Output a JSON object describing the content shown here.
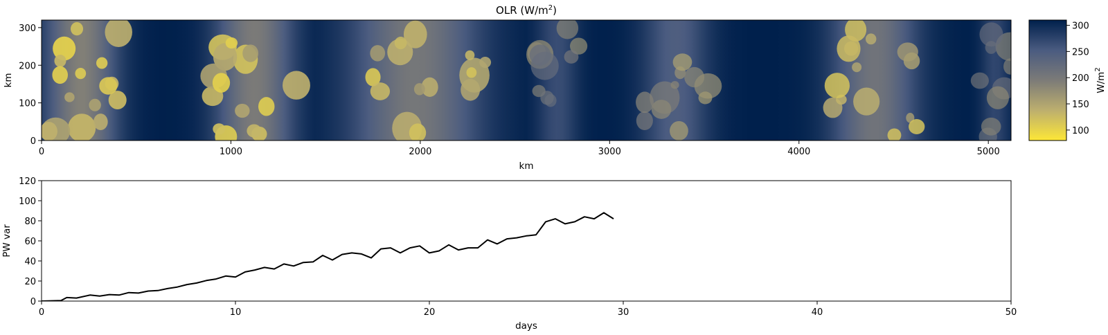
{
  "chart_data": [
    {
      "type": "heatmap",
      "title": "OLR (W/m",
      "title_sup": "2",
      "title_close": ")",
      "xlabel": "km",
      "ylabel": "km",
      "xlim": [
        0,
        5120
      ],
      "ylim": [
        0,
        320
      ],
      "x_ticks": [
        0,
        1000,
        2000,
        3000,
        4000,
        5000
      ],
      "y_ticks": [
        0,
        100,
        200,
        300
      ],
      "colormap": "cividis_r",
      "colorbar": {
        "label": "W/m",
        "label_sup": "2",
        "range": [
          80,
          310
        ],
        "ticks": [
          100,
          150,
          200,
          250,
          300
        ],
        "stops": [
          "#fde737",
          "#bdaf6e",
          "#7c7b78",
          "#4a5b80",
          "#00204c"
        ]
      },
      "convective_bands_km": [
        {
          "x": [
            0,
            420
          ],
          "strength": 0.95
        },
        {
          "x": [
            900,
            1350
          ],
          "strength": 0.9
        },
        {
          "x": [
            1600,
            2350
          ],
          "strength": 0.85
        },
        {
          "x": [
            2600,
            2850
          ],
          "strength": 0.35
        },
        {
          "x": [
            3150,
            3550
          ],
          "strength": 0.5
        },
        {
          "x": [
            4150,
            4650
          ],
          "strength": 0.8
        },
        {
          "x": [
            4950,
            5120
          ],
          "strength": 0.3
        }
      ]
    },
    {
      "type": "line",
      "xlabel": "days",
      "ylabel": "PW var",
      "xlim": [
        0,
        50
      ],
      "ylim": [
        0,
        120
      ],
      "x_ticks": [
        0,
        10,
        20,
        30,
        40,
        50
      ],
      "y_ticks": [
        0,
        20,
        40,
        60,
        80,
        100,
        120
      ],
      "series": [
        {
          "color": "#000000",
          "x": [
            0,
            0.5,
            1.0,
            1.3,
            1.8,
            2.5,
            3.0,
            3.5,
            4.0,
            4.5,
            5.0,
            5.5,
            6.0,
            6.5,
            7.0,
            7.5,
            8.0,
            8.5,
            9.0,
            9.5,
            10.0,
            10.5,
            11.0,
            11.5,
            12.0,
            12.5,
            13.0,
            13.5,
            14.0,
            14.5,
            15.0,
            15.5,
            16.0,
            16.5,
            17.0,
            17.5,
            18.0,
            18.5,
            19.0,
            19.5,
            20.0,
            20.5,
            21.0,
            21.5,
            22.0,
            22.5,
            23.0,
            23.5,
            24.0,
            24.5,
            25.0,
            25.5,
            26.0,
            26.5,
            27.0,
            27.5,
            28.0,
            28.5,
            29.0,
            29.5
          ],
          "y": [
            0,
            0.3,
            0.5,
            3.5,
            3.0,
            6.0,
            5.0,
            6.5,
            6.0,
            8.5,
            8.0,
            10.0,
            10.5,
            12.5,
            14.0,
            16.5,
            18.0,
            20.5,
            22.0,
            25.0,
            24.0,
            29.0,
            31.0,
            33.5,
            32.0,
            37.0,
            35.0,
            38.5,
            39.0,
            45.5,
            41.0,
            46.5,
            48.0,
            47.0,
            43.0,
            52.0,
            53.0,
            48.0,
            53.0,
            55.0,
            48.0,
            50.0,
            56.0,
            51.0,
            53.0,
            53.0,
            61.0,
            57.0,
            62.0,
            63.0,
            65.0,
            66.0,
            79.0,
            82.0,
            77.0,
            79.0,
            84.0,
            82.0,
            88.0,
            82.0
          ]
        }
      ]
    }
  ]
}
